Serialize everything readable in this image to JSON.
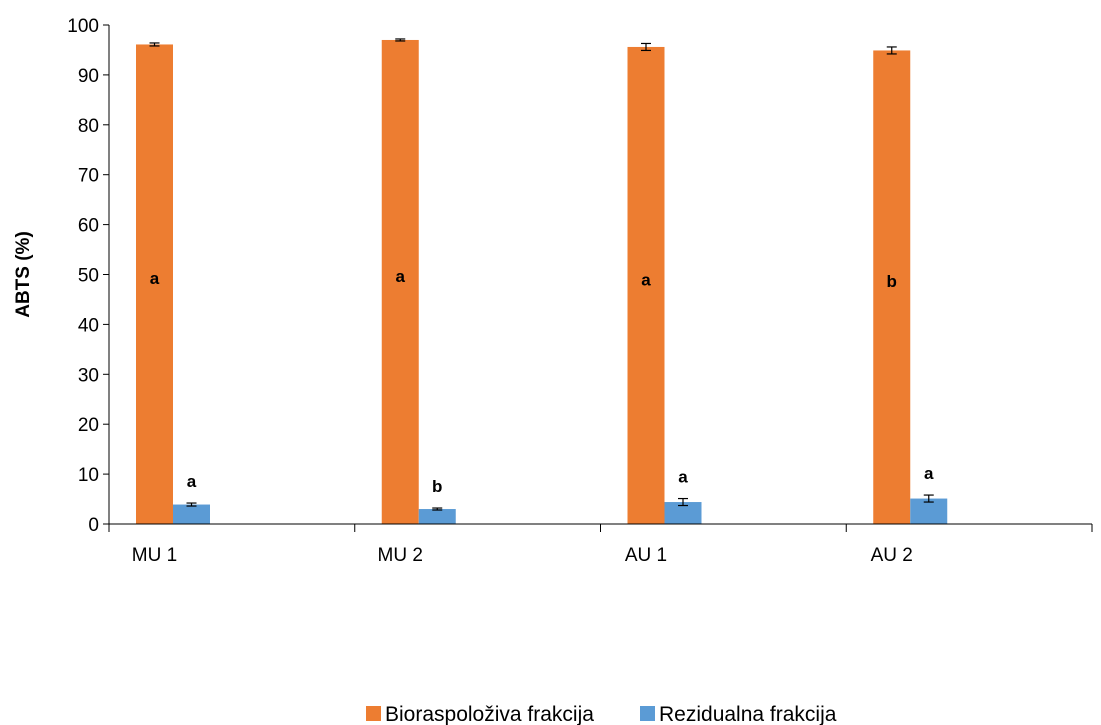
{
  "chart_data": {
    "type": "bar",
    "ylabel": "ABTS  (%)",
    "ylim": [
      0,
      100
    ],
    "yticks": [
      0,
      10,
      20,
      30,
      40,
      50,
      60,
      70,
      80,
      90,
      100
    ],
    "categories": [
      "MU 1",
      "MU 2",
      "AU 1",
      "AU 2"
    ],
    "series": [
      {
        "name": "Bioraspoloživa frakcija",
        "color": "#ED7D31",
        "values": [
          96.1,
          97.0,
          95.6,
          94.9
        ],
        "errors": [
          0.3,
          0.2,
          0.7,
          0.7
        ],
        "sig": [
          "a",
          "a",
          "a",
          "b"
        ]
      },
      {
        "name": "Rezidualna frakcija",
        "color": "#5B9BD5",
        "values": [
          3.9,
          3.0,
          4.4,
          5.1
        ],
        "errors": [
          0.3,
          0.2,
          0.7,
          0.7
        ],
        "sig": [
          "a",
          "b",
          "a",
          "a"
        ]
      }
    ],
    "grid": false,
    "legend_position": "bottom"
  }
}
